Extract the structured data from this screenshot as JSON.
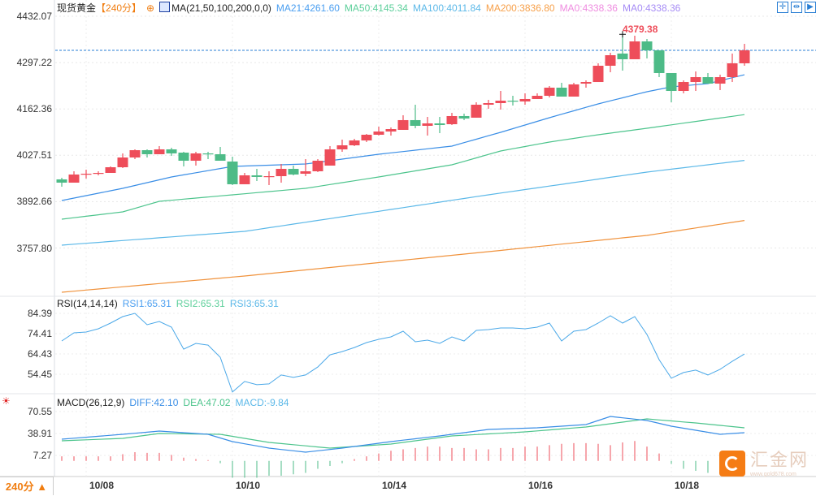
{
  "header": {
    "symbol": "现货黄金",
    "period": "【240分】",
    "ma_name": "MA(21,50,100,200,0,0)",
    "ma21": "MA21:4261.60",
    "ma50": "MA50:4145.34",
    "ma100": "MA100:4011.84",
    "ma200": "MA200:3836.80",
    "ma0a": "MA0:4338.36",
    "ma0b": "MA0:4338.36"
  },
  "toolbar": {
    "crosshair": "✛",
    "fit": "⇹",
    "play": "▶"
  },
  "colors": {
    "up": "#ee4d5a",
    "down": "#4dbb87",
    "ma21": "#3a8ee6",
    "ma50": "#4cc48c",
    "ma100": "#5bb8e8",
    "ma200": "#f0923c",
    "last_line": "#2a7fd4"
  },
  "price_axis": [
    "4432.07",
    "4297.22",
    "4162.36",
    "4027.51",
    "3892.66",
    "3757.80"
  ],
  "high_label": "4379.38",
  "last_price": 4332.7,
  "rsi": {
    "title": "RSI(14,14,14)",
    "rsi1": "RSI1:65.31",
    "rsi2": "RSI2:65.31",
    "rsi3": "RSI3:65.31",
    "axis": [
      "84.39",
      "74.41",
      "64.43",
      "54.45"
    ],
    "values": [
      70.8,
      74.8,
      75.2,
      76.8,
      79.6,
      82.8,
      84.4,
      78.8,
      80.4,
      77.6,
      66.8,
      69.6,
      68.8,
      62.8,
      45.7,
      50.9,
      49.3,
      49.7,
      54.1,
      52.9,
      54.1,
      58.0,
      64.0,
      65.6,
      67.6,
      70.0,
      71.6,
      72.8,
      75.6,
      70.4,
      71.2,
      69.6,
      72.8,
      70.8,
      76.0,
      76.4,
      77.2,
      77.2,
      76.8,
      77.6,
      79.6,
      70.8,
      75.6,
      76.4,
      79.6,
      83.2,
      79.6,
      82.8,
      74.0,
      61.6,
      52.5,
      55.3,
      56.5,
      54.1,
      56.9,
      60.8,
      64.4
    ]
  },
  "macd": {
    "title": "MACD(26,12,9)",
    "diff_label": "DIFF:42.10",
    "dea_label": "DEA:47.02",
    "macd_label": "MACD:-9.84",
    "axis": [
      "70.55",
      "38.91",
      "7.27"
    ],
    "diff": [
      [
        0,
        30.7
      ],
      [
        5,
        37.7
      ],
      [
        8,
        42.4
      ],
      [
        12,
        37.7
      ],
      [
        14,
        27.2
      ],
      [
        17,
        17.8
      ],
      [
        20,
        12.0
      ],
      [
        23,
        17.8
      ],
      [
        27,
        27.2
      ],
      [
        31,
        35.4
      ],
      [
        35,
        44.8
      ],
      [
        39,
        47.1
      ],
      [
        43,
        51.8
      ],
      [
        45,
        63.5
      ],
      [
        48,
        57.7
      ],
      [
        50,
        49.5
      ],
      [
        54,
        37.7
      ],
      [
        56,
        40.1
      ]
    ],
    "dea": [
      [
        0,
        28.4
      ],
      [
        5,
        31.9
      ],
      [
        8,
        38.9
      ],
      [
        13,
        37.7
      ],
      [
        17,
        26.0
      ],
      [
        22,
        17.8
      ],
      [
        27,
        23.7
      ],
      [
        32,
        35.4
      ],
      [
        38,
        41.2
      ],
      [
        43,
        48.3
      ],
      [
        48,
        60.0
      ],
      [
        52,
        54.1
      ],
      [
        56,
        47.1
      ]
    ],
    "hist": [
      6,
      6,
      6,
      6,
      6,
      9,
      12,
      11,
      11,
      8,
      4,
      2,
      0.5,
      -4,
      -25,
      -25,
      -25,
      -22,
      -22,
      -20,
      -18,
      -12,
      -8,
      -4,
      2,
      6,
      10,
      14,
      16,
      18,
      20,
      20,
      18,
      18,
      16,
      16,
      18,
      18,
      20,
      20,
      22,
      24,
      25,
      25,
      24,
      22,
      26,
      28,
      20,
      10,
      -5,
      -12,
      -15,
      -18,
      -20,
      -22,
      -12
    ]
  },
  "x_axis": [
    {
      "label": "10/08",
      "index": 2
    },
    {
      "label": "10/10",
      "index": 14
    },
    {
      "label": "10/14",
      "index": 26
    },
    {
      "label": "10/16",
      "index": 38
    },
    {
      "label": "10/18",
      "index": 50
    }
  ],
  "period_selector": "240分 ▲",
  "logo": {
    "text": "汇金网",
    "url_text": "www.gold678.com"
  },
  "chart_data": {
    "type": "candlestick",
    "title": "现货黄金 240分",
    "ylim": [
      3600,
      4432.07
    ],
    "candles_ohlc": [
      [
        3956.6,
        3947.1,
        3961.3,
        3935.3
      ],
      [
        3947.1,
        3970.8,
        3980.2,
        3947.1
      ],
      [
        3973.1,
        3973.1,
        3984.9,
        3958.9
      ],
      [
        3974.3,
        3975.5,
        3980.2,
        3968.4
      ],
      [
        3975.5,
        3992.0,
        3994.4,
        3975.5
      ],
      [
        3992.0,
        4020.4,
        4032.3,
        3989.7
      ],
      [
        4020.4,
        4041.7,
        4044.1,
        4015.7
      ],
      [
        4041.7,
        4029.9,
        4044.1,
        4020.4
      ],
      [
        4029.9,
        4044.1,
        4053.6,
        4029.9
      ],
      [
        4044.1,
        4032.3,
        4048.8,
        4025.2
      ],
      [
        4034.6,
        4011.0,
        4037.0,
        3994.4
      ],
      [
        4011.0,
        4032.3,
        4037.0,
        3996.8
      ],
      [
        4032.3,
        4029.9,
        4037.0,
        4015.7
      ],
      [
        4029.9,
        4011.0,
        4051.2,
        4011.0
      ],
      [
        4008.6,
        3942.4,
        4022.8,
        3940.0
      ],
      [
        3942.4,
        3968.4,
        3975.5,
        3942.4
      ],
      [
        3968.4,
        3963.7,
        3987.3,
        3951.8
      ],
      [
        3964.8,
        3966.0,
        3980.2,
        3940.0
      ],
      [
        3966.0,
        3987.3,
        4001.5,
        3947.1
      ],
      [
        3987.3,
        3970.8,
        3996.8,
        3968.4
      ],
      [
        3973.1,
        3980.2,
        4015.7,
        3966.0
      ],
      [
        3980.2,
        4011.0,
        4015.7,
        3977.9
      ],
      [
        3996.8,
        4044.1,
        4053.6,
        3996.8
      ],
      [
        4044.1,
        4055.9,
        4072.5,
        4037.0
      ],
      [
        4055.9,
        4070.1,
        4074.8,
        4053.6
      ],
      [
        4070.1,
        4086.7,
        4089.0,
        4065.4
      ],
      [
        4086.7,
        4096.1,
        4110.3,
        4084.3
      ],
      [
        4096.1,
        4103.2,
        4108.0,
        4084.3
      ],
      [
        4100.9,
        4129.3,
        4143.5,
        4100.9
      ],
      [
        4129.3,
        4112.7,
        4174.2,
        4105.6
      ],
      [
        4112.7,
        4119.8,
        4138.7,
        4084.3
      ],
      [
        4119.8,
        4115.1,
        4138.7,
        4091.4
      ],
      [
        4117.4,
        4141.1,
        4150.5,
        4115.1
      ],
      [
        4141.1,
        4134.0,
        4148.2,
        4129.3
      ],
      [
        4136.4,
        4174.2,
        4181.3,
        4136.4
      ],
      [
        4174.2,
        4178.9,
        4188.4,
        4162.4
      ],
      [
        4178.9,
        4186.0,
        4214.4,
        4160.0
      ],
      [
        4186.0,
        4184.8,
        4200.2,
        4171.8
      ],
      [
        4183.7,
        4190.8,
        4207.3,
        4174.2
      ],
      [
        4190.8,
        4200.2,
        4207.3,
        4190.8
      ],
      [
        4200.2,
        4223.9,
        4228.6,
        4195.5
      ],
      [
        4223.9,
        4197.9,
        4238.1,
        4197.9
      ],
      [
        4197.9,
        4233.4,
        4238.1,
        4197.9
      ],
      [
        4235.7,
        4240.4,
        4245.2,
        4223.9
      ],
      [
        4240.4,
        4287.8,
        4294.9,
        4240.4
      ],
      [
        4287.8,
        4318.5,
        4325.6,
        4268.8
      ],
      [
        4323.3,
        4306.7,
        4379.4,
        4273.6
      ],
      [
        4306.7,
        4358.7,
        4375.3,
        4306.7
      ],
      [
        4358.7,
        4332.7,
        4365.8,
        4309.1
      ],
      [
        4332.7,
        4266.5,
        4332.7,
        4254.6
      ],
      [
        4266.5,
        4214.4,
        4266.5,
        4181.3
      ],
      [
        4214.4,
        4240.4,
        4245.2,
        4207.3
      ],
      [
        4240.4,
        4254.6,
        4271.2,
        4214.4
      ],
      [
        4254.6,
        4235.7,
        4266.5,
        4235.7
      ],
      [
        4235.7,
        4254.6,
        4261.7,
        4216.8
      ],
      [
        4254.6,
        4294.9,
        4323.3,
        4240.4
      ],
      [
        4294.9,
        4332.7,
        4351.6,
        4287.8
      ]
    ],
    "ma21": [
      [
        0,
        3895.0
      ],
      [
        5,
        3930.5
      ],
      [
        9,
        3963.7
      ],
      [
        14,
        3994.4
      ],
      [
        20,
        4001.5
      ],
      [
        26,
        4029.9
      ],
      [
        32,
        4053.6
      ],
      [
        36,
        4093.8
      ],
      [
        40,
        4136.4
      ],
      [
        44,
        4176.6
      ],
      [
        48,
        4212.1
      ],
      [
        50,
        4226.2
      ],
      [
        53,
        4235.7
      ],
      [
        56,
        4261.6
      ]
    ],
    "ma50": [
      [
        0,
        3840.6
      ],
      [
        5,
        3861.9
      ],
      [
        8,
        3892.7
      ],
      [
        14,
        3911.6
      ],
      [
        20,
        3930.5
      ],
      [
        26,
        3963.7
      ],
      [
        32,
        3999.1
      ],
      [
        36,
        4039.4
      ],
      [
        40,
        4065.4
      ],
      [
        44,
        4086.7
      ],
      [
        48,
        4105.6
      ],
      [
        56,
        4145.3
      ]
    ],
    "ma100": [
      [
        0,
        3765.0
      ],
      [
        15,
        3805.1
      ],
      [
        35,
        3911.6
      ],
      [
        48,
        3977.9
      ],
      [
        56,
        4011.8
      ]
    ],
    "ma200": [
      [
        0,
        3627.7
      ],
      [
        15,
        3675.1
      ],
      [
        35,
        3746.0
      ],
      [
        48,
        3793.4
      ],
      [
        56,
        3836.8
      ]
    ]
  }
}
